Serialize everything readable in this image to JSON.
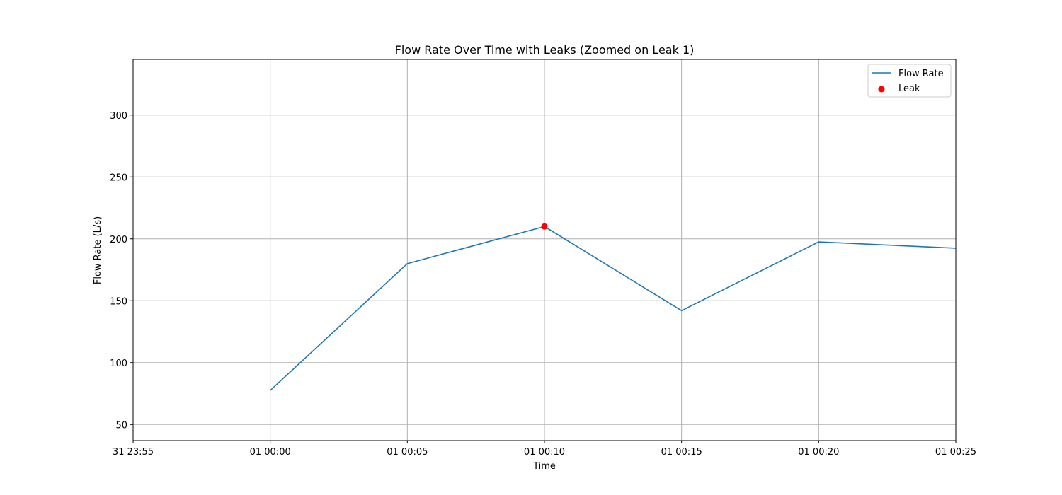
{
  "chart_data": {
    "type": "line",
    "title": "Flow Rate Over Time with Leaks (Zoomed on Leak 1)",
    "xlabel": "Time",
    "ylabel": "Flow Rate (L/s)",
    "x_ticks": [
      "31 23:55",
      "01 00:00",
      "01 00:05",
      "01 00:10",
      "01 00:15",
      "01 00:20",
      "01 00:25"
    ],
    "y_ticks": [
      50,
      100,
      150,
      200,
      250,
      300
    ],
    "xlim": [
      "31 23:55",
      "01 00:25"
    ],
    "ylim": [
      37,
      345
    ],
    "grid": true,
    "legend_position": "top-right",
    "series": [
      {
        "name": "Flow Rate",
        "type": "line",
        "color": "#1f77b4",
        "x": [
          "01 00:00",
          "01 00:05",
          "01 00:10",
          "01 00:15",
          "01 00:20",
          "01 00:25"
        ],
        "y": [
          77.5,
          180,
          210,
          142,
          197.5,
          192.5
        ]
      },
      {
        "name": "Leak",
        "type": "scatter",
        "color": "#ff0000",
        "x": [
          "01 00:10"
        ],
        "y": [
          210
        ]
      }
    ]
  }
}
